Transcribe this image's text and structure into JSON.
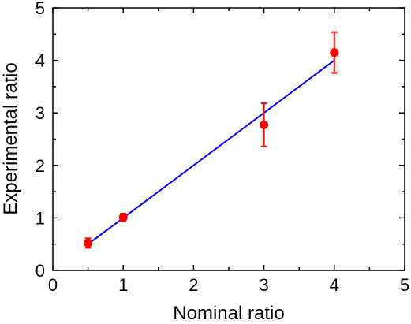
{
  "chart_data": {
    "type": "scatter",
    "xlabel": "Nominal ratio",
    "ylabel": "Experimental ratio",
    "xlim": [
      0,
      5
    ],
    "ylim": [
      0,
      5
    ],
    "x_ticks": [
      0,
      1,
      2,
      3,
      4,
      5
    ],
    "y_ticks": [
      0,
      1,
      2,
      3,
      4,
      5
    ],
    "grid": false,
    "series": [
      {
        "kind": "scatter-with-error",
        "color": "#ff0000",
        "points": [
          {
            "x": 0.5,
            "y": 0.52,
            "err": 0.09
          },
          {
            "x": 1.0,
            "y": 1.01,
            "err": 0.07
          },
          {
            "x": 3.0,
            "y": 2.77,
            "err": 0.41
          },
          {
            "x": 4.0,
            "y": 4.15,
            "err": 0.39
          }
        ]
      },
      {
        "kind": "line",
        "color": "#0000ff",
        "x": [
          0.5,
          4.0
        ],
        "y": [
          0.5,
          4.0
        ]
      }
    ]
  }
}
